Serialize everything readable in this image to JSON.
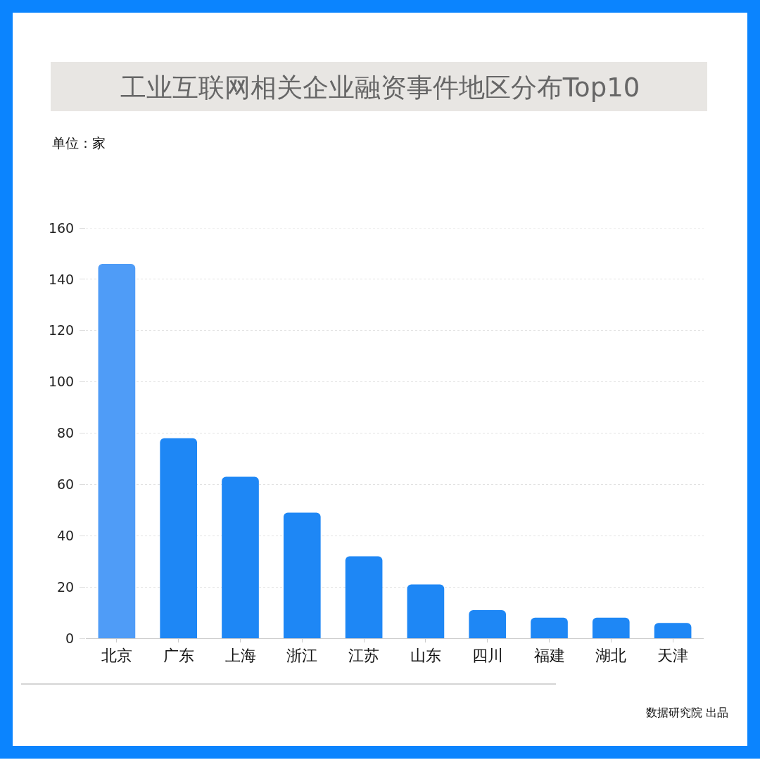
{
  "chart_data": {
    "type": "bar",
    "title": "工业互联网相关企业融资事件地区分布Top10",
    "categories": [
      "北京",
      "广东",
      "上海",
      "浙江",
      "江苏",
      "山东",
      "四川",
      "福建",
      "湖北",
      "天津"
    ],
    "values": [
      146,
      78,
      63,
      49,
      32,
      21,
      11,
      8,
      8,
      6
    ],
    "colors": [
      "#4f9cf7",
      "#1e87f5",
      "#1e87f5",
      "#1e87f5",
      "#1e87f5",
      "#1e87f5",
      "#1e87f5",
      "#1e87f5",
      "#1e87f5",
      "#1e87f5"
    ],
    "ylim": [
      0,
      160
    ],
    "yticks": [
      0,
      20,
      40,
      60,
      80,
      100,
      120,
      140,
      160
    ],
    "grid": "y",
    "annotations": [
      "单位：家",
      "数据研究院 出品"
    ]
  }
}
